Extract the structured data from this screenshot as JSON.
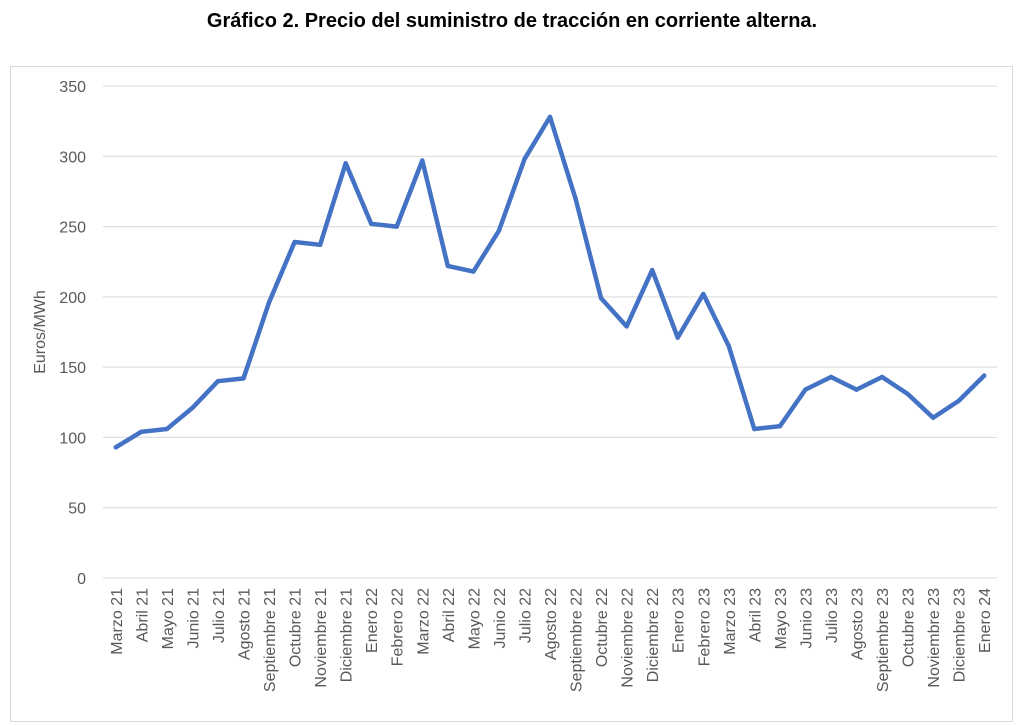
{
  "title": "Gráfico 2. Precio del suministro de tracción en corriente alterna.",
  "chart_data": {
    "type": "line",
    "title": "Gráfico 2. Precio del suministro de tracción en corriente alterna.",
    "xlabel": "",
    "ylabel": "Euros/MWh",
    "ylim": [
      0,
      350
    ],
    "yticks": [
      0,
      50,
      100,
      150,
      200,
      250,
      300,
      350
    ],
    "grid": true,
    "legend": "none",
    "line_color": "#4472C4",
    "categories": [
      "Marzo 21",
      "Abril 21",
      "Mayo 21",
      "Junio 21",
      "Julio 21",
      "Agosto 21",
      "Septiembre 21",
      "Octubre 21",
      "Noviembre 21",
      "Diciembre 21",
      "Enero 22",
      "Febrero 22",
      "Marzo 22",
      "Abril 22",
      "Mayo 22",
      "Junio 22",
      "Julio 22",
      "Agosto 22",
      "Septiembre 22",
      "Octubre 22",
      "Noviembre 22",
      "Diciembre 22",
      "Enero 23",
      "Febrero 23",
      "Marzo 23",
      "Abril 23",
      "Mayo 23",
      "Junio 23",
      "Julio 23",
      "Agosto 23",
      "Septiembre 23",
      "Octubre 23",
      "Noviembre 23",
      "Diciembre 23",
      "Enero 24"
    ],
    "series": [
      {
        "values": [
          93,
          104,
          106,
          121,
          140,
          142,
          196,
          239,
          237,
          295,
          252,
          250,
          297,
          222,
          218,
          247,
          298,
          328,
          270,
          199,
          179,
          219,
          171,
          202,
          165,
          106,
          108,
          134,
          143,
          134,
          143,
          131,
          114,
          126,
          144
        ]
      }
    ]
  }
}
